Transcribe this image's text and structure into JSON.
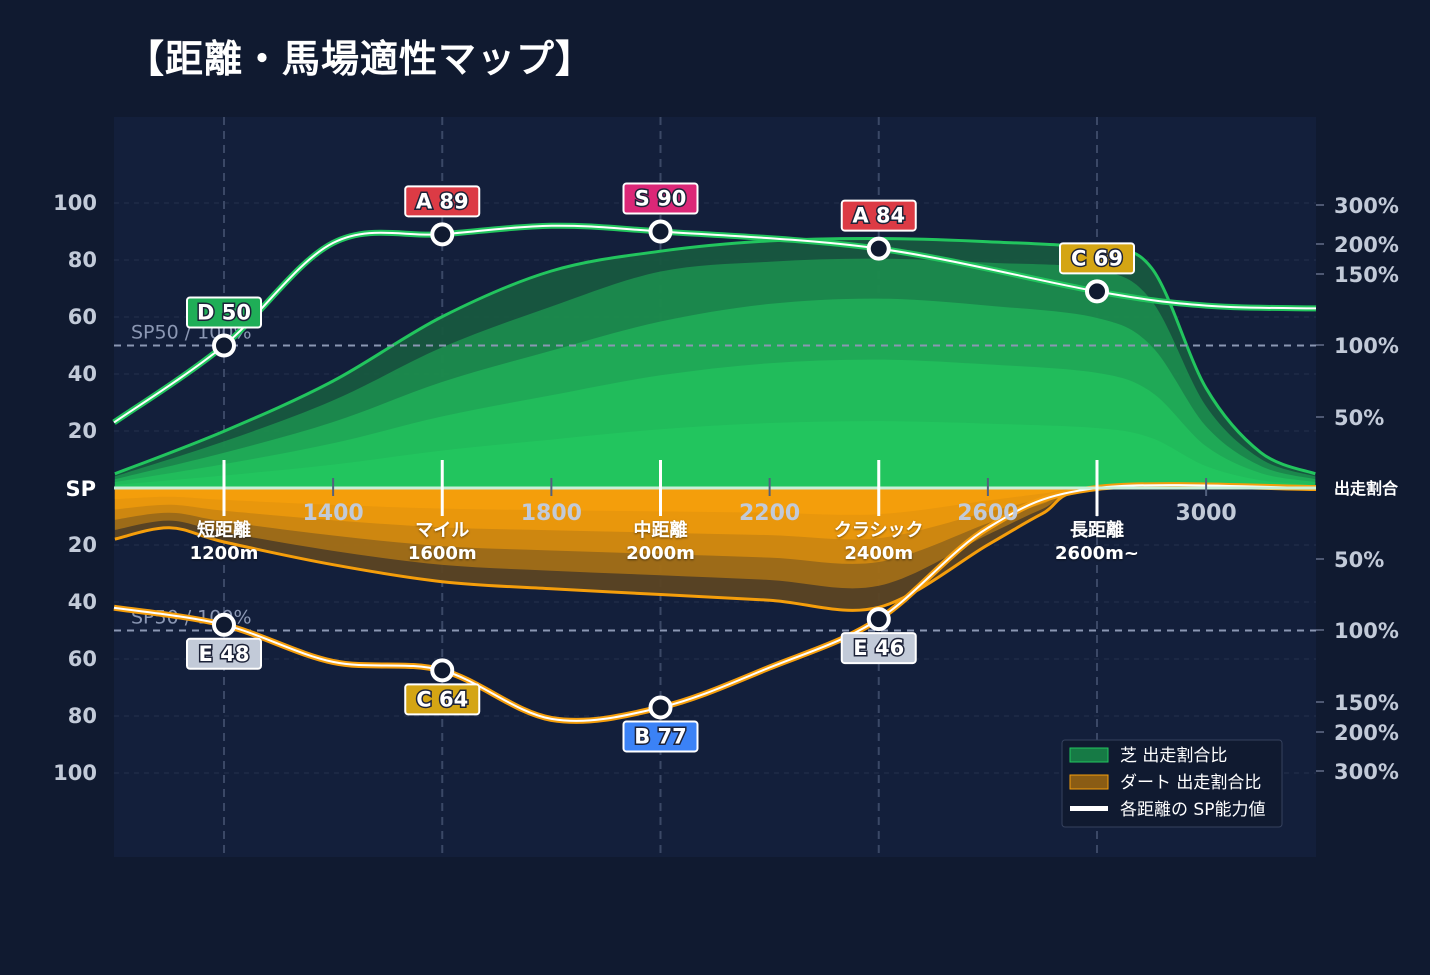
{
  "title": "【距離・馬場適性マップ】",
  "colors": {
    "background": "#101a30",
    "plot_bg": "#131f3b",
    "turf": "#22c55e",
    "dirt": "#f59e0b",
    "sp_line": "#ffffff",
    "rank_S": "#db2777",
    "rank_A": "#dc3b45",
    "rank_B": "#3b82f6",
    "rank_C": "#d4a514",
    "rank_D": "#1fae57",
    "rank_E": "#c2cad8"
  },
  "chart_data": {
    "type": "area",
    "x_ticks": [
      "1400",
      "1800",
      "2200",
      "2600",
      "3000"
    ],
    "x_tick_values": [
      1400,
      1800,
      2200,
      2600,
      3000
    ],
    "xlim": [
      1000,
      3200
    ],
    "y_left_label": "SP",
    "y_left_ticks": [
      "100",
      "80",
      "60",
      "40",
      "20"
    ],
    "y_left_values": [
      100,
      80,
      60,
      40,
      20
    ],
    "y_right_label": "出走割合",
    "y_right_ticks_upper": [
      "300%",
      "200%",
      "150%",
      "100%",
      "50%"
    ],
    "y_right_ticks_lower": [
      "50%",
      "100%",
      "150%",
      "200%",
      "300%"
    ],
    "y_right_values": [
      300,
      200,
      150,
      100,
      50
    ],
    "reference_line_label": "SP50 / 100%",
    "categories": [
      {
        "name": "短距離",
        "distance": "1200m",
        "x": 1200
      },
      {
        "name": "マイル",
        "distance": "1600m",
        "x": 1600
      },
      {
        "name": "中距離",
        "distance": "2000m",
        "x": 2000
      },
      {
        "name": "クラシック",
        "distance": "2400m",
        "x": 2400
      },
      {
        "name": "長距離",
        "distance": "2600m~",
        "x": 2800
      }
    ],
    "turf_sp_points": [
      {
        "x": 1200,
        "sp": 50,
        "rank": "D"
      },
      {
        "x": 1600,
        "sp": 89,
        "rank": "A"
      },
      {
        "x": 2000,
        "sp": 90,
        "rank": "S"
      },
      {
        "x": 2400,
        "sp": 84,
        "rank": "A"
      },
      {
        "x": 2800,
        "sp": 69,
        "rank": "C"
      }
    ],
    "dirt_sp_points": [
      {
        "x": 1200,
        "sp": 48,
        "rank": "E"
      },
      {
        "x": 1600,
        "sp": 64,
        "rank": "C"
      },
      {
        "x": 2000,
        "sp": 77,
        "rank": "B"
      },
      {
        "x": 2400,
        "sp": 46,
        "rank": "E"
      }
    ],
    "turf_share_outline": {
      "x": [
        1000,
        1200,
        1400,
        1600,
        1800,
        2000,
        2200,
        2400,
        2600,
        2800,
        2900,
        3000,
        3100,
        3200
      ],
      "pct": [
        10,
        40,
        75,
        120,
        155,
        188,
        208,
        214,
        206,
        192,
        160,
        70,
        25,
        10
      ]
    },
    "dirt_share_outline": {
      "x": [
        1000,
        1100,
        1200,
        1400,
        1600,
        1800,
        2000,
        2200,
        2400,
        2600,
        2700,
        2800,
        3200
      ],
      "pct": [
        36,
        28,
        38,
        54,
        66,
        71,
        75,
        79,
        84,
        40,
        18,
        0,
        0
      ]
    },
    "legend": [
      "芝 出走割合比",
      "ダート 出走割合比",
      "各距離の SP能力値"
    ],
    "legend_position": "bottom-right",
    "grid": true
  }
}
